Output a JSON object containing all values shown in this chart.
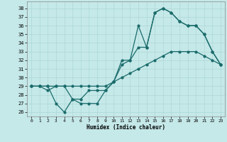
{
  "xlabel": "Humidex (Indice chaleur)",
  "bg_color": "#c5e8e8",
  "line_color": "#1a6b6b",
  "ylim": [
    25.5,
    38.8
  ],
  "xlim": [
    -0.5,
    23.5
  ],
  "yticks": [
    26,
    27,
    28,
    29,
    30,
    31,
    32,
    33,
    34,
    35,
    36,
    37,
    38
  ],
  "xticks": [
    0,
    1,
    2,
    3,
    4,
    5,
    6,
    7,
    8,
    9,
    10,
    11,
    12,
    13,
    14,
    15,
    16,
    17,
    18,
    19,
    20,
    21,
    22,
    23
  ],
  "line1_x": [
    0,
    1,
    2,
    3,
    4,
    5,
    6,
    7,
    8,
    9,
    10,
    11,
    12,
    13,
    14,
    15,
    16,
    17,
    18,
    19,
    20,
    21,
    22,
    23
  ],
  "line1_y": [
    29,
    29,
    29,
    27,
    26,
    27.5,
    27,
    27,
    27,
    28.5,
    29.5,
    31.5,
    32,
    36,
    33.5,
    37.5,
    38,
    37.5,
    36.5,
    36,
    36,
    35,
    33,
    31.5
  ],
  "line2_x": [
    0,
    1,
    2,
    3,
    4,
    5,
    6,
    7,
    8,
    9,
    10,
    11,
    12,
    13,
    14,
    15,
    16,
    17,
    18,
    19,
    20,
    21,
    22,
    23
  ],
  "line2_y": [
    29,
    29,
    28.5,
    29,
    29,
    27.5,
    27.5,
    28.5,
    28.5,
    28.5,
    29.5,
    32,
    32,
    33.5,
    33.5,
    37.5,
    38,
    37.5,
    36.5,
    36,
    36,
    35,
    33,
    31.5
  ],
  "line3_x": [
    0,
    1,
    2,
    3,
    4,
    5,
    6,
    7,
    8,
    9,
    10,
    11,
    12,
    13,
    14,
    15,
    16,
    17,
    18,
    19,
    20,
    21,
    22,
    23
  ],
  "line3_y": [
    29,
    29,
    29,
    29,
    29,
    29,
    29,
    29,
    29,
    29,
    29.5,
    30,
    30.5,
    31,
    31.5,
    32,
    32.5,
    33,
    33,
    33,
    33,
    32.5,
    32,
    31.5
  ]
}
